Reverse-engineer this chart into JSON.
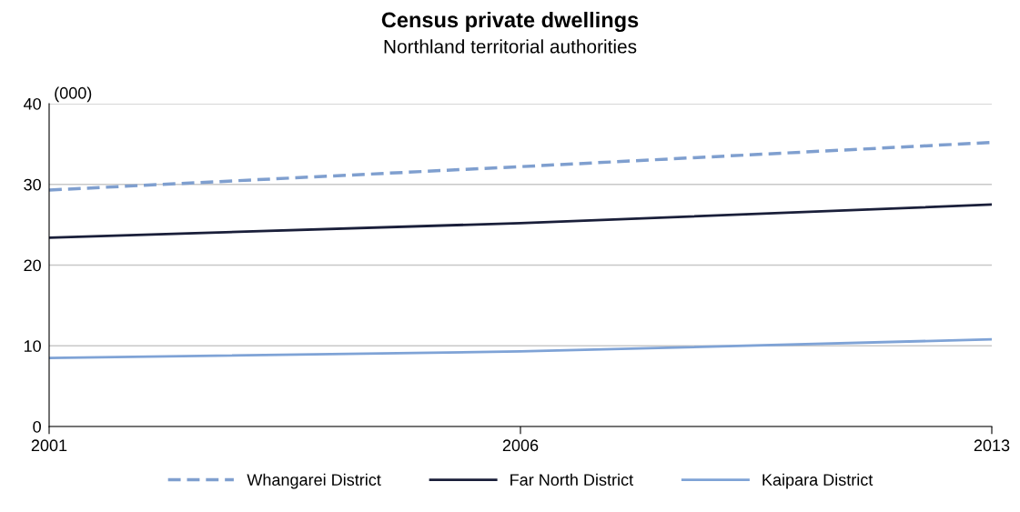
{
  "chart_data": {
    "type": "line",
    "title": "Census private dwellings",
    "subtitle": "Northland territorial authorities",
    "ylabel": "(000)",
    "categories": [
      "2001",
      "2006",
      "2013"
    ],
    "series": [
      {
        "name": "Whangarei District",
        "color": "#7f9fcf",
        "line_style": "dashed",
        "values": [
          29.3,
          32.2,
          35.2
        ]
      },
      {
        "name": "Far North District",
        "color": "#1a1f3a",
        "line_style": "solid",
        "values": [
          23.4,
          25.2,
          27.5
        ]
      },
      {
        "name": "Kaipara District",
        "color": "#7fa3d6",
        "line_style": "solid",
        "values": [
          8.5,
          9.3,
          10.8
        ]
      }
    ],
    "ylim": [
      0,
      40
    ],
    "yticks": [
      0,
      10,
      20,
      30,
      40
    ],
    "grid": "y",
    "legend": "bottom",
    "marker": "none"
  }
}
